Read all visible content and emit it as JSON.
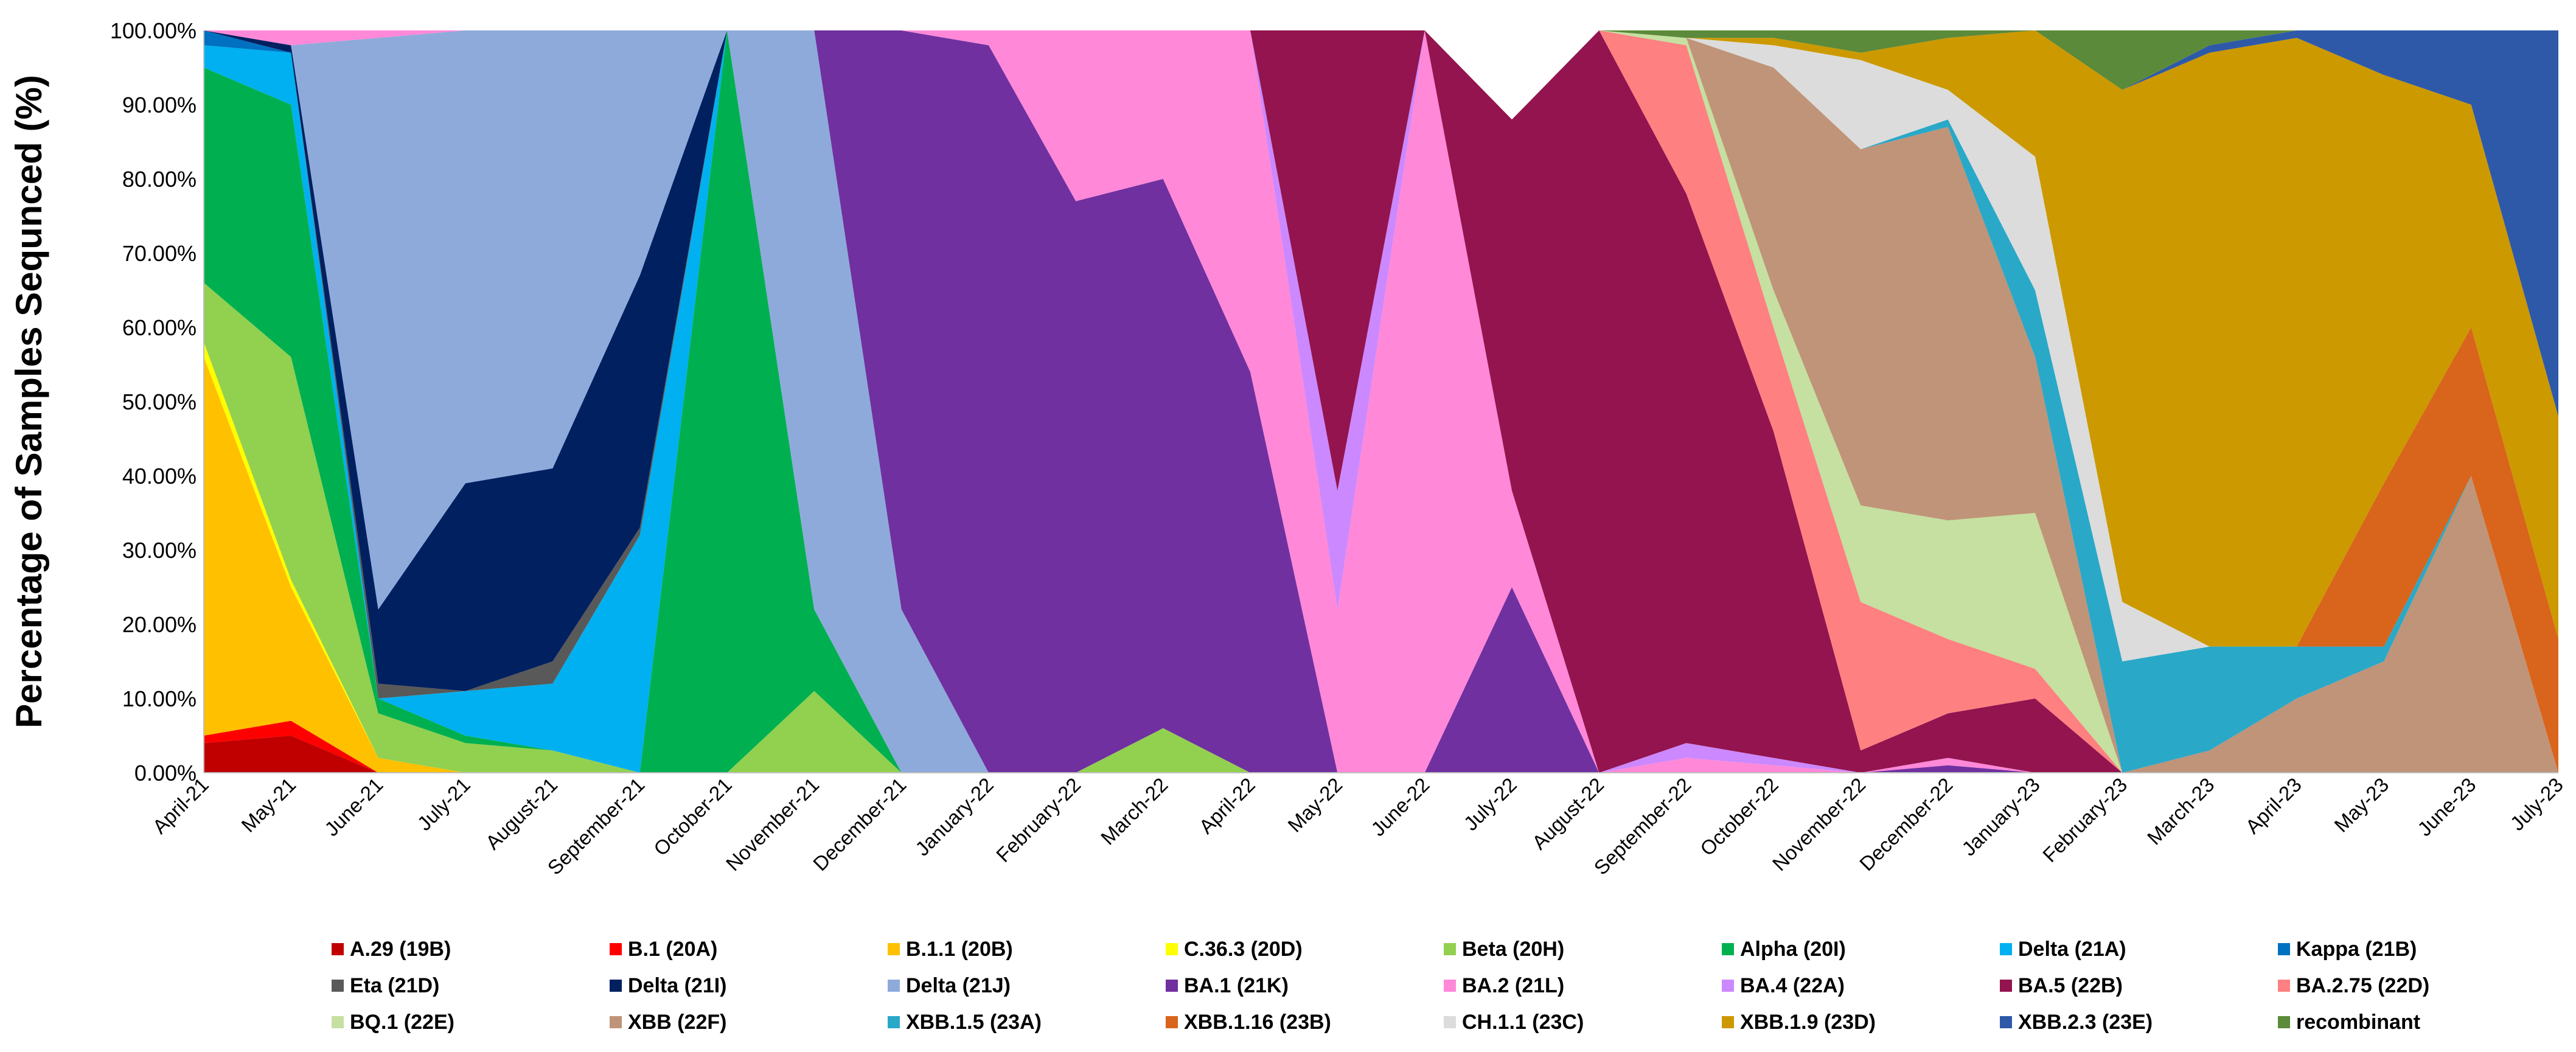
{
  "chart_data": {
    "type": "area",
    "stacked": true,
    "title": "",
    "xlabel": "",
    "ylabel": "Percentage of Samples Sequnced (%)",
    "ylim": [
      0,
      100
    ],
    "yticks": [
      "0.00%",
      "10.00%",
      "20.00%",
      "30.00%",
      "40.00%",
      "50.00%",
      "60.00%",
      "70.00%",
      "80.00%",
      "90.00%",
      "100.00%"
    ],
    "categories": [
      "April-21",
      "May-21",
      "June-21",
      "July-21",
      "August-21",
      "September-21",
      "October-21",
      "November-21",
      "December-21",
      "January-22",
      "February-22",
      "March-22",
      "April-22",
      "May-22",
      "June-22",
      "July-22",
      "August-22",
      "September-22",
      "October-22",
      "November-22",
      "December-22",
      "January-23",
      "February-23",
      "March-23",
      "April-23",
      "May-23",
      "June-23",
      "July-23"
    ],
    "legend_position": "bottom",
    "series": [
      {
        "name": "A.29 (19B)",
        "color": "#c00000",
        "values": [
          4,
          5,
          0,
          0,
          0,
          0,
          0,
          0,
          0,
          0,
          0,
          0,
          0,
          0,
          0,
          0,
          0,
          0,
          0,
          0,
          0,
          0,
          0,
          0,
          0,
          0,
          0,
          0
        ]
      },
      {
        "name": "B.1 (20A)",
        "color": "#ff0000",
        "values": [
          1,
          2,
          0,
          0,
          0,
          0,
          0,
          0,
          0,
          0,
          0,
          0,
          0,
          0,
          0,
          0,
          0,
          0,
          0,
          0,
          0,
          0,
          0,
          0,
          0,
          0,
          0,
          0
        ]
      },
      {
        "name": "B.1.1 (20B)",
        "color": "#ffc000",
        "values": [
          51,
          18,
          2,
          0,
          0,
          0,
          0,
          0,
          0,
          0,
          0,
          0,
          0,
          0,
          0,
          0,
          0,
          0,
          0,
          0,
          0,
          0,
          0,
          0,
          0,
          0,
          0,
          0
        ]
      },
      {
        "name": "C.36.3 (20D)",
        "color": "#ffff00",
        "values": [
          2,
          1,
          0,
          0,
          0,
          0,
          0,
          0,
          0,
          0,
          0,
          0,
          0,
          0,
          0,
          0,
          0,
          0,
          0,
          0,
          0,
          0,
          0,
          0,
          0,
          0,
          0,
          0
        ]
      },
      {
        "name": "Beta (20H)",
        "color": "#92d050",
        "values": [
          8,
          30,
          6,
          4,
          3,
          0,
          0,
          11,
          0,
          0,
          0,
          6,
          0,
          0,
          0,
          0,
          0,
          0,
          0,
          0,
          0,
          0,
          0,
          0,
          0,
          0,
          0,
          0
        ]
      },
      {
        "name": "Alpha (20I)",
        "color": "#00b050",
        "values": [
          29,
          34,
          2,
          1,
          0,
          0,
          100,
          11,
          0,
          0,
          0,
          0,
          0,
          0,
          0,
          0,
          0,
          0,
          0,
          0,
          0,
          0,
          0,
          0,
          0,
          0,
          0,
          0
        ]
      },
      {
        "name": "Delta (21A)",
        "color": "#00b0f0",
        "values": [
          3,
          7,
          0,
          6,
          9,
          32,
          0,
          0,
          0,
          0,
          0,
          0,
          0,
          0,
          0,
          0,
          0,
          0,
          0,
          0,
          0,
          0,
          0,
          0,
          0,
          0,
          0,
          0
        ]
      },
      {
        "name": "Kappa (21B)",
        "color": "#0070c0",
        "values": [
          2,
          0,
          0,
          0,
          0,
          0,
          0,
          0,
          0,
          0,
          0,
          0,
          0,
          0,
          0,
          0,
          0,
          0,
          0,
          0,
          0,
          0,
          0,
          0,
          0,
          0,
          0,
          0
        ]
      },
      {
        "name": "Eta (21D)",
        "color": "#595959",
        "values": [
          0,
          0,
          2,
          0,
          3,
          1,
          0,
          0,
          0,
          0,
          0,
          0,
          0,
          0,
          0,
          0,
          0,
          0,
          0,
          0,
          0,
          0,
          0,
          0,
          0,
          0,
          0,
          0
        ]
      },
      {
        "name": "Delta (21I)",
        "color": "#002060",
        "values": [
          0,
          1,
          10,
          28,
          26,
          34,
          0,
          0,
          0,
          0,
          0,
          0,
          0,
          0,
          0,
          0,
          0,
          0,
          0,
          0,
          0,
          0,
          0,
          0,
          0,
          0,
          0,
          0
        ]
      },
      {
        "name": "Delta (21J)",
        "color": "#8eaadb",
        "values": [
          0,
          0,
          77,
          61,
          59,
          33,
          0,
          78,
          22,
          0,
          0,
          0,
          0,
          0,
          0,
          0,
          0,
          0,
          0,
          0,
          0,
          0,
          0,
          0,
          0,
          0,
          0,
          0
        ]
      },
      {
        "name": "BA.1 (21K)",
        "color": "#7030a0",
        "values": [
          0,
          0,
          0,
          0,
          0,
          0,
          0,
          0,
          78,
          98,
          77,
          74,
          54,
          0,
          0,
          25,
          0,
          0,
          0,
          0,
          1,
          0,
          0,
          0,
          0,
          0,
          0,
          0
        ]
      },
      {
        "name": "BA.2 (21L)",
        "color": "#ff88d8",
        "values": [
          0,
          2,
          1,
          0,
          0,
          0,
          0,
          0,
          0,
          2,
          23,
          20,
          46,
          22,
          100,
          13,
          0,
          2,
          1,
          0,
          1,
          0,
          0,
          0,
          0,
          0,
          0,
          0
        ]
      },
      {
        "name": "BA.4 (22A)",
        "color": "#cc88ff",
        "values": [
          0,
          0,
          0,
          0,
          0,
          0,
          0,
          0,
          0,
          0,
          0,
          0,
          0,
          16,
          0,
          0,
          0,
          2,
          1,
          0,
          0,
          0,
          0,
          0,
          0,
          0,
          0,
          0
        ]
      },
      {
        "name": "BA.5 (22B)",
        "color": "#93144f",
        "values": [
          0,
          0,
          0,
          0,
          0,
          0,
          0,
          0,
          0,
          0,
          0,
          0,
          0,
          62,
          0,
          50,
          100,
          74,
          44,
          3,
          6,
          10,
          0,
          0,
          0,
          0,
          0,
          0
        ]
      },
      {
        "name": "BA.2.75 (22D)",
        "color": "#ff8080",
        "values": [
          0,
          0,
          0,
          0,
          0,
          0,
          0,
          0,
          0,
          0,
          0,
          0,
          0,
          0,
          0,
          0,
          0,
          20,
          14,
          20,
          10,
          4,
          0,
          0,
          0,
          0,
          0,
          0
        ]
      },
      {
        "name": "BQ.1 (22E)",
        "color": "#c5e0a0",
        "values": [
          0,
          0,
          0,
          0,
          0,
          0,
          0,
          0,
          0,
          0,
          0,
          0,
          0,
          0,
          0,
          0,
          0,
          1,
          5,
          13,
          16,
          21,
          0,
          0,
          0,
          0,
          0,
          0
        ]
      },
      {
        "name": "XBB (22F)",
        "color": "#c09478",
        "values": [
          0,
          0,
          0,
          0,
          0,
          0,
          0,
          0,
          0,
          0,
          0,
          0,
          0,
          0,
          0,
          0,
          0,
          0,
          30,
          48,
          53,
          21,
          0,
          3,
          10,
          15,
          40,
          0
        ]
      },
      {
        "name": "XBB.1.5 (23A)",
        "color": "#2aa8c8",
        "values": [
          0,
          0,
          0,
          0,
          0,
          0,
          0,
          0,
          0,
          0,
          0,
          0,
          0,
          0,
          0,
          0,
          0,
          0,
          0,
          0,
          1,
          9,
          15,
          14,
          7,
          2,
          0,
          0
        ]
      },
      {
        "name": "XBB.1.16 (23B)",
        "color": "#d9641b",
        "values": [
          0,
          0,
          0,
          0,
          0,
          0,
          0,
          0,
          0,
          0,
          0,
          0,
          0,
          0,
          0,
          0,
          0,
          0,
          0,
          0,
          0,
          0,
          0,
          0,
          0,
          22,
          20,
          18
        ]
      },
      {
        "name": "CH.1.1 (23C)",
        "color": "#dcdcdc",
        "values": [
          0,
          0,
          0,
          0,
          0,
          0,
          0,
          0,
          0,
          0,
          0,
          0,
          0,
          0,
          0,
          0,
          0,
          0,
          3,
          12,
          4,
          18,
          8,
          0,
          0,
          0,
          0,
          0
        ]
      },
      {
        "name": "XBB.1.9 (23D)",
        "color": "#cc9900",
        "values": [
          0,
          0,
          0,
          0,
          0,
          0,
          0,
          0,
          0,
          0,
          0,
          0,
          0,
          0,
          0,
          0,
          0,
          0,
          1,
          1,
          7,
          17,
          69,
          80,
          82,
          55,
          30,
          30
        ]
      },
      {
        "name": "XBB.2.3 (23E)",
        "color": "#2e59a8",
        "values": [
          0,
          0,
          0,
          0,
          0,
          0,
          0,
          0,
          0,
          0,
          0,
          0,
          0,
          0,
          0,
          0,
          0,
          0,
          0,
          0,
          0,
          0,
          0,
          1,
          1,
          6,
          10,
          52
        ]
      },
      {
        "name": "recombinant",
        "color": "#5b8a3a",
        "values": [
          0,
          0,
          0,
          0,
          0,
          0,
          0,
          0,
          0,
          0,
          0,
          0,
          0,
          0,
          0,
          0,
          0,
          1,
          1,
          3,
          1,
          0,
          8,
          2,
          0,
          0,
          0,
          0
        ]
      }
    ]
  }
}
